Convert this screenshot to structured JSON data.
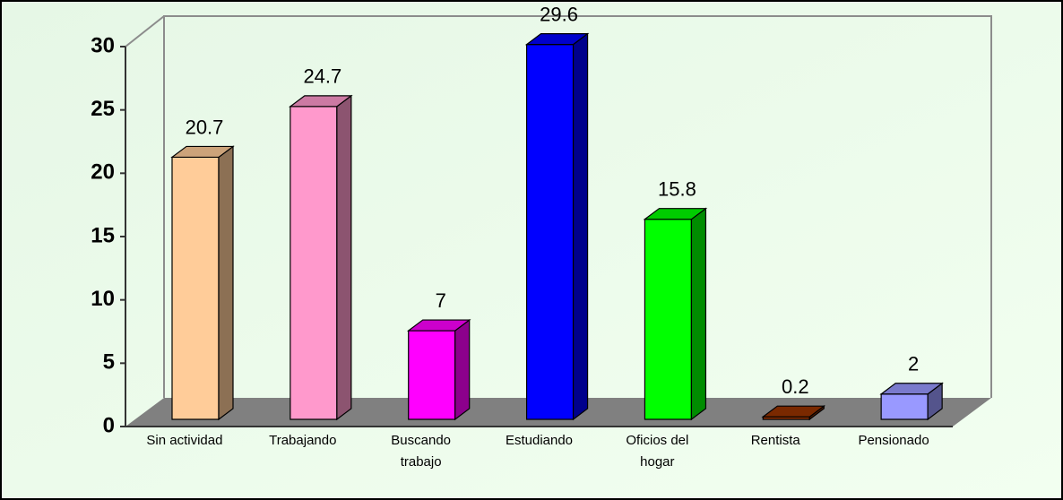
{
  "chart_data": {
    "type": "bar3d",
    "categories": [
      "Sin actividad",
      "Trabajando",
      "Buscando trabajo",
      "Estudiando",
      "Oficios del hogar",
      "Rentista",
      "Pensionado"
    ],
    "values": [
      20.7,
      24.7,
      7,
      29.6,
      15.8,
      0.2,
      2
    ],
    "colors": [
      "#ffcc99",
      "#ff99cc",
      "#ff00ff",
      "#0000ff",
      "#00ff00",
      "#993300",
      "#9999ff"
    ],
    "ylim": [
      0,
      30
    ],
    "yticks": [
      0,
      5,
      10,
      15,
      20,
      25,
      30
    ],
    "grid": false
  }
}
